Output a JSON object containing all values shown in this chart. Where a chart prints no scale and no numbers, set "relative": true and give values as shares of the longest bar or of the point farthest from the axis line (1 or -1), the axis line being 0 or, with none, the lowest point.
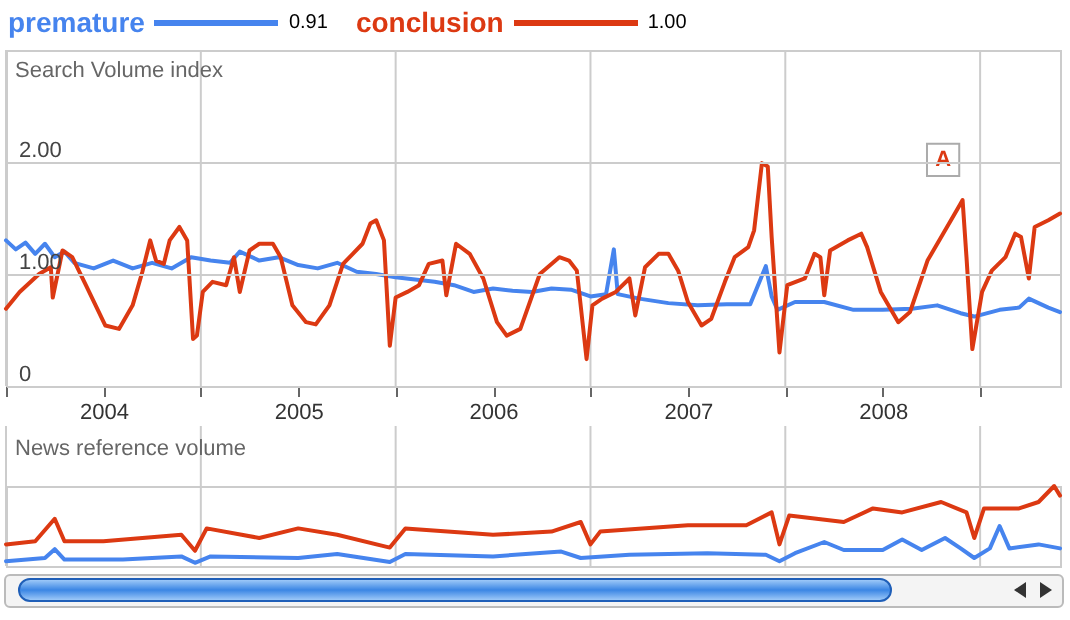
{
  "chart_data": [
    {
      "type": "line",
      "ylabel": "Search Volume index",
      "legend": "top left",
      "grid": true,
      "xlim": [
        2004,
        2009.41
      ],
      "ylim": [
        0,
        3
      ],
      "xticks": [
        {
          "value": 2004,
          "label": null
        },
        {
          "value": 2004.5,
          "label": "2004"
        },
        {
          "value": 2005,
          "label": null
        },
        {
          "value": 2005.5,
          "label": "2005"
        },
        {
          "value": 2006,
          "label": null
        },
        {
          "value": 2006.5,
          "label": "2006"
        },
        {
          "value": 2007,
          "label": null
        },
        {
          "value": 2007.5,
          "label": "2007"
        },
        {
          "value": 2008,
          "label": null
        },
        {
          "value": 2008.5,
          "label": "2008"
        },
        {
          "value": 2009,
          "label": null
        }
      ],
      "yticks": [
        0,
        {
          "value": 1,
          "label": "1.00"
        },
        {
          "value": 2,
          "label": "2.00"
        }
      ],
      "annotations": [
        "0.91",
        "1.00",
        {
          "text": "A",
          "x": 2008.81,
          "y": 2.02
        }
      ],
      "series": [
        {
          "name": "premature",
          "color": "#4684ee",
          "x": [
            2004.0,
            2004.05,
            2004.1,
            2004.15,
            2004.2,
            2004.25,
            2004.3,
            2004.35,
            2004.45,
            2004.55,
            2004.65,
            2004.75,
            2004.85,
            2004.95,
            2005.05,
            2005.15,
            2005.2,
            2005.3,
            2005.4,
            2005.5,
            2005.6,
            2005.7,
            2005.8,
            2005.9,
            2006.0,
            2006.1,
            2006.2,
            2006.3,
            2006.4,
            2006.5,
            2006.6,
            2006.7,
            2006.8,
            2006.9,
            2007.0,
            2007.08,
            2007.12,
            2007.14,
            2007.25,
            2007.4,
            2007.55,
            2007.7,
            2007.82,
            2007.9,
            2007.93,
            2007.96,
            2008.05,
            2008.2,
            2008.35,
            2008.5,
            2008.65,
            2008.78,
            2008.9,
            2008.97,
            2009.1,
            2009.2,
            2009.25,
            2009.35,
            2009.41
          ],
          "values": [
            1.3,
            1.22,
            1.28,
            1.18,
            1.27,
            1.15,
            1.2,
            1.1,
            1.05,
            1.12,
            1.05,
            1.1,
            1.05,
            1.15,
            1.12,
            1.1,
            1.2,
            1.12,
            1.15,
            1.08,
            1.05,
            1.1,
            1.02,
            1.0,
            0.97,
            0.95,
            0.93,
            0.9,
            0.84,
            0.87,
            0.85,
            0.84,
            0.87,
            0.86,
            0.8,
            0.82,
            1.22,
            0.82,
            0.78,
            0.74,
            0.72,
            0.73,
            0.73,
            1.07,
            0.8,
            0.68,
            0.75,
            0.75,
            0.68,
            0.68,
            0.69,
            0.72,
            0.65,
            0.62,
            0.68,
            0.7,
            0.78,
            0.7,
            0.66
          ]
        },
        {
          "name": "conclusion",
          "color": "#dc3912",
          "x": [
            2004.0,
            2004.07,
            2004.17,
            2004.23,
            2004.24,
            2004.29,
            2004.34,
            2004.41,
            2004.51,
            2004.58,
            2004.65,
            2004.7,
            2004.74,
            2004.77,
            2004.81,
            2004.84,
            2004.89,
            2004.93,
            2004.96,
            2004.98,
            2005.01,
            2005.06,
            2005.13,
            2005.17,
            2005.2,
            2005.25,
            2005.3,
            2005.37,
            2005.41,
            2005.47,
            2005.54,
            2005.59,
            2005.66,
            2005.73,
            2005.78,
            2005.83,
            2005.87,
            2005.9,
            2005.94,
            2005.97,
            2006.0,
            2006.06,
            2006.12,
            2006.17,
            2006.24,
            2006.26,
            2006.31,
            2006.38,
            2006.45,
            2006.52,
            2006.57,
            2006.64,
            2006.74,
            2006.84,
            2006.89,
            2006.93,
            2006.98,
            2007.01,
            2007.06,
            2007.13,
            2007.2,
            2007.23,
            2007.28,
            2007.35,
            2007.4,
            2007.45,
            2007.5,
            2007.57,
            2007.62,
            2007.69,
            2007.74,
            2007.81,
            2007.84,
            2007.88,
            2007.91,
            2007.93,
            2007.97,
            2008.01,
            2008.1,
            2008.15,
            2008.18,
            2008.2,
            2008.23,
            2008.32,
            2008.39,
            2008.42,
            2008.49,
            2008.58,
            2008.64,
            2008.73,
            2008.81,
            2008.86,
            2008.9,
            2008.91,
            2008.93,
            2008.96,
            2009.01,
            2009.06,
            2009.13,
            2009.18,
            2009.21,
            2009.25,
            2009.28,
            2009.35,
            2009.41
          ],
          "values": [
            0.69,
            0.84,
            1.0,
            1.06,
            0.79,
            1.21,
            1.15,
            0.9,
            0.54,
            0.51,
            0.72,
            1.02,
            1.3,
            1.12,
            1.09,
            1.3,
            1.42,
            1.3,
            0.42,
            0.45,
            0.84,
            0.93,
            0.9,
            1.15,
            0.84,
            1.21,
            1.27,
            1.27,
            1.15,
            0.72,
            0.57,
            0.55,
            0.72,
            1.09,
            1.18,
            1.27,
            1.45,
            1.48,
            1.3,
            0.36,
            0.79,
            0.84,
            0.9,
            1.09,
            1.12,
            0.81,
            1.27,
            1.18,
            0.96,
            0.57,
            0.45,
            0.51,
            1.0,
            1.15,
            1.12,
            1.03,
            0.24,
            0.72,
            0.78,
            0.84,
            0.96,
            0.63,
            1.06,
            1.18,
            1.18,
            1.03,
            0.75,
            0.54,
            0.6,
            0.93,
            1.15,
            1.24,
            1.39,
            1.99,
            1.96,
            1.33,
            0.3,
            0.9,
            0.96,
            1.18,
            1.15,
            0.81,
            1.21,
            1.3,
            1.36,
            1.24,
            0.84,
            0.57,
            0.66,
            1.12,
            1.36,
            1.51,
            1.63,
            1.66,
            1.15,
            0.33,
            0.84,
            1.03,
            1.15,
            1.36,
            1.33,
            0.96,
            1.42,
            1.48,
            1.54
          ]
        }
      ]
    },
    {
      "type": "line",
      "ylabel": "News reference volume",
      "relative": true,
      "grid": "x",
      "tick_labels": false,
      "xlim": [
        2004,
        2009.41
      ],
      "xticks": [
        {
          "value": 2004,
          "label": null
        },
        {
          "value": 2005,
          "label": null
        },
        {
          "value": 2006,
          "label": null
        },
        {
          "value": 2007,
          "label": null
        },
        {
          "value": 2008,
          "label": null
        },
        {
          "value": 2009,
          "label": null
        }
      ],
      "annotations": [
        "0"
      ],
      "series": [
        {
          "color": "#4684ee",
          "x": [
            2004.0,
            2004.2,
            2004.25,
            2004.3,
            2004.6,
            2004.9,
            2004.97,
            2005.05,
            2005.5,
            2005.7,
            2005.97,
            2006.05,
            2006.5,
            2006.85,
            2006.95,
            2007.2,
            2007.6,
            2007.9,
            2007.97,
            2008.05,
            2008.2,
            2008.3,
            2008.5,
            2008.6,
            2008.7,
            2008.82,
            2008.9,
            2008.97,
            2009.05,
            2009.1,
            2009.15,
            2009.3,
            2009.41
          ],
          "values": [
            0.06,
            0.1,
            0.21,
            0.08,
            0.08,
            0.12,
            0.04,
            0.12,
            0.1,
            0.15,
            0.05,
            0.15,
            0.12,
            0.18,
            0.1,
            0.14,
            0.16,
            0.14,
            0.06,
            0.16,
            0.3,
            0.2,
            0.2,
            0.33,
            0.2,
            0.35,
            0.22,
            0.1,
            0.22,
            0.5,
            0.22,
            0.27,
            0.22
          ]
        },
        {
          "color": "#dc3912",
          "x": [
            2004.0,
            2004.15,
            2004.25,
            2004.3,
            2004.5,
            2004.9,
            2004.97,
            2005.03,
            2005.3,
            2005.5,
            2005.7,
            2005.97,
            2006.05,
            2006.5,
            2006.8,
            2006.95,
            2007.0,
            2007.05,
            2007.5,
            2007.8,
            2007.93,
            2007.97,
            2008.02,
            2008.3,
            2008.45,
            2008.6,
            2008.8,
            2008.93,
            2008.97,
            2009.02,
            2009.2,
            2009.3,
            2009.38,
            2009.41
          ],
          "values": [
            0.27,
            0.31,
            0.59,
            0.31,
            0.31,
            0.39,
            0.19,
            0.47,
            0.35,
            0.47,
            0.39,
            0.23,
            0.47,
            0.39,
            0.43,
            0.55,
            0.27,
            0.43,
            0.51,
            0.51,
            0.67,
            0.27,
            0.63,
            0.55,
            0.72,
            0.67,
            0.8,
            0.67,
            0.35,
            0.72,
            0.72,
            0.8,
            1.0,
            0.88
          ]
        }
      ]
    }
  ]
}
